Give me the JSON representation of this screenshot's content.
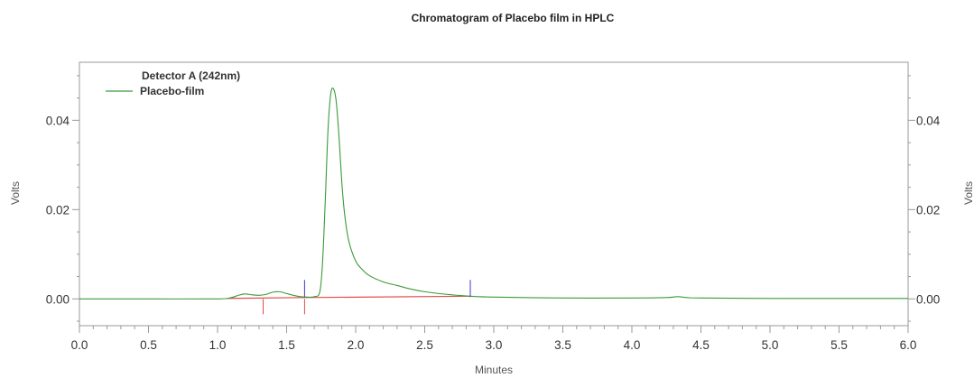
{
  "chart_data": {
    "type": "line",
    "title": "Chromatogram of Placebo film in HPLC",
    "xlabel": "Minutes",
    "ylabel": "Volts",
    "y2label": "Volts",
    "xlim": [
      0.0,
      6.0
    ],
    "ylim": [
      -0.006,
      0.053
    ],
    "x_ticks": [
      "0.0",
      "0.5",
      "1.0",
      "1.5",
      "2.0",
      "2.5",
      "3.0",
      "3.5",
      "4.0",
      "4.5",
      "5.0",
      "5.5",
      "6.0"
    ],
    "y_ticks": [
      "0.00",
      "0.02",
      "0.04"
    ],
    "legend": {
      "title": "Detector A (242nm)",
      "position": "top-left",
      "entries": [
        {
          "name": "Placebo-film",
          "color": "#3a9a3a"
        }
      ]
    },
    "series": [
      {
        "name": "Placebo-film",
        "color": "#3a9a3a",
        "x": [
          0.0,
          0.5,
          1.0,
          1.1,
          1.15,
          1.2,
          1.25,
          1.3,
          1.35,
          1.4,
          1.45,
          1.5,
          1.55,
          1.6,
          1.65,
          1.7,
          1.74,
          1.76,
          1.78,
          1.8,
          1.82,
          1.84,
          1.86,
          1.88,
          1.9,
          1.92,
          1.95,
          2.0,
          2.05,
          2.1,
          2.2,
          2.3,
          2.4,
          2.5,
          2.6,
          2.7,
          2.83,
          3.0,
          3.5,
          4.0,
          4.25,
          4.33,
          4.4,
          4.5,
          5.0,
          5.5,
          6.0
        ],
        "y": [
          0.0,
          0.0,
          0.0,
          0.0003,
          0.0008,
          0.0011,
          0.0009,
          0.0008,
          0.001,
          0.0015,
          0.0016,
          0.0012,
          0.0008,
          0.0005,
          0.0004,
          0.0005,
          0.0015,
          0.008,
          0.022,
          0.038,
          0.046,
          0.047,
          0.044,
          0.036,
          0.026,
          0.019,
          0.013,
          0.0085,
          0.0065,
          0.0052,
          0.0038,
          0.003,
          0.0022,
          0.0016,
          0.0012,
          0.0009,
          0.0006,
          0.0004,
          0.0002,
          0.0002,
          0.0003,
          0.0005,
          0.0003,
          0.0002,
          0.0001,
          0.0001,
          0.0001
        ]
      }
    ],
    "baseline_segments": [
      {
        "color": "#e34a4a",
        "x": [
          1.07,
          1.63
        ],
        "y": [
          0.0001,
          0.0003
        ]
      },
      {
        "color": "#e34a4a",
        "x": [
          1.63,
          2.83
        ],
        "y": [
          0.0003,
          0.0006
        ]
      }
    ],
    "peak_markers": [
      {
        "color": "#e34a4a",
        "x": 1.33,
        "direction": "down"
      },
      {
        "color": "#e34a4a",
        "x": 1.63,
        "direction": "down"
      },
      {
        "color": "#3a3ad0",
        "x": 1.63,
        "direction": "up"
      },
      {
        "color": "#3a3ad0",
        "x": 2.83,
        "direction": "up"
      }
    ],
    "grid": false
  }
}
